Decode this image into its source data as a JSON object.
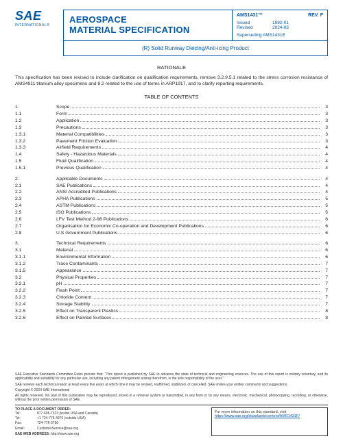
{
  "logo": {
    "main": "SAE",
    "sub": "INTERNATIONAL®"
  },
  "header": {
    "title1": "AEROSPACE",
    "title2": "MATERIAL SPECIFICATION",
    "spec_id": "AMS1431™",
    "rev": "REV. F",
    "issued_label": "Issued",
    "issued_date": "1992-01",
    "revised_label": "Revised",
    "revised_date": "2024-03",
    "superseding": "Superseding AMS1431E",
    "subtitle": "(R) Solid Runway Deicing/Anti-icing Product"
  },
  "rationale": {
    "heading": "RATIONALE",
    "text": "This specification has been revised to include clarification on qualification requirements, remove 3.2.9.5.1 related to the stress corrosion resistance of AMS4911 titanium alloy specimens and 8.2 related to the use of terms in ARP1917, and to clarify reporting requirements."
  },
  "toc": {
    "heading": "TABLE OF CONTENTS",
    "sections": [
      [
        {
          "n": "1.",
          "t": "Scope",
          "p": "3"
        },
        {
          "n": "1.1",
          "t": "Form",
          "p": "3"
        },
        {
          "n": "1.2",
          "t": "Application",
          "p": "3"
        },
        {
          "n": "1.3",
          "t": "Precautions",
          "p": "3"
        },
        {
          "n": "1.3.1",
          "t": "Material Compatibilities",
          "p": "3"
        },
        {
          "n": "1.3.2",
          "t": "Pavement Friction Evaluation",
          "p": "3"
        },
        {
          "n": "1.3.3",
          "t": "Airfield Requirements",
          "p": "4"
        },
        {
          "n": "1.4",
          "t": "Safety - Hazardous Materials",
          "p": "4"
        },
        {
          "n": "1.5",
          "t": "Fluid Qualification",
          "p": "4"
        },
        {
          "n": "1.5.1",
          "t": "Previous Qualification",
          "p": "4"
        }
      ],
      [
        {
          "n": "2.",
          "t": "Applicable Documents",
          "p": "4"
        },
        {
          "n": "2.1",
          "t": "SAE Publications",
          "p": "4"
        },
        {
          "n": "2.2",
          "t": "ANSI Accredited Publications",
          "p": "4"
        },
        {
          "n": "2.3",
          "t": "APHA Publications",
          "p": "5"
        },
        {
          "n": "2.4",
          "t": "ASTM Publications",
          "p": "5"
        },
        {
          "n": "2.5",
          "t": "ISO Publications",
          "p": "5"
        },
        {
          "n": "2.6",
          "t": "LFV Test Method 2-98 Publications",
          "p": "6"
        },
        {
          "n": "2.7",
          "t": "Organisation for Economic Co-operation and Development Publications",
          "p": "6"
        },
        {
          "n": "2.8",
          "t": "U.S Government Publications",
          "p": "6"
        }
      ],
      [
        {
          "n": "3.",
          "t": "Technical Requirements",
          "p": "6"
        },
        {
          "n": "3.1",
          "t": "Material",
          "p": "6"
        },
        {
          "n": "3.1.1",
          "t": "Environmental Information",
          "p": "6"
        },
        {
          "n": "3.1.2",
          "t": "Trace Contaminants",
          "p": "7"
        },
        {
          "n": "3.1.5",
          "t": "Appearance",
          "p": "7"
        },
        {
          "n": "3.2",
          "t": "Physical Properties",
          "p": "7"
        },
        {
          "n": "3.2.1",
          "t": "pH",
          "p": "7"
        },
        {
          "n": "3.2.2",
          "t": "Flash Point",
          "p": "7"
        },
        {
          "n": "3.2.3",
          "t": "Chloride Content",
          "p": "7"
        },
        {
          "n": "3.2.4",
          "t": "Storage Stability",
          "p": "7"
        },
        {
          "n": "3.2.5",
          "t": "Effect on Transparent Plastics",
          "p": "8"
        },
        {
          "n": "3.2.6",
          "t": "Effect on Painted Surfaces",
          "p": "8"
        }
      ]
    ]
  },
  "footer": {
    "p1": "SAE Executive Standards Committee Rules provide that: \"This report is published by SAE to advance the state of technical and engineering sciences. The use of this report is entirely voluntary, and its applicability and suitability for any particular use, including any patent infringement arising therefrom, is the sole responsibility of the user.\"",
    "p2": "SAE reviews each technical report at least every five years at which time it may be revised, reaffirmed, stabilized, or cancelled. SAE invites your written comments and suggestions.",
    "p3": "Copyright © 2024 SAE International",
    "p4": "All rights reserved. No part of this publication may be reproduced, stored in a retrieval system or transmitted, in any form or by any means, electronic, mechanical, photocopying, recording, or otherwise, without the prior written permission of SAE.",
    "order_label": "TO PLACE A DOCUMENT ORDER:",
    "tel_label": "Tel:",
    "tel1": "877-606-7323 (inside USA and Canada)",
    "tel_label2": "Tel:",
    "tel2": "+1 724-776-4970 (outside USA)",
    "fax_label": "Fax:",
    "fax": "724-776-0790",
    "email_label": "Email:",
    "email": "CustomerService@sae.org",
    "web_label": "SAE WEB ADDRESS:",
    "web": "http://www.sae.org",
    "box_text": "For more information on this standard, visit",
    "box_link": "https://www.sae.org/standards/content/AMS1431F/"
  }
}
